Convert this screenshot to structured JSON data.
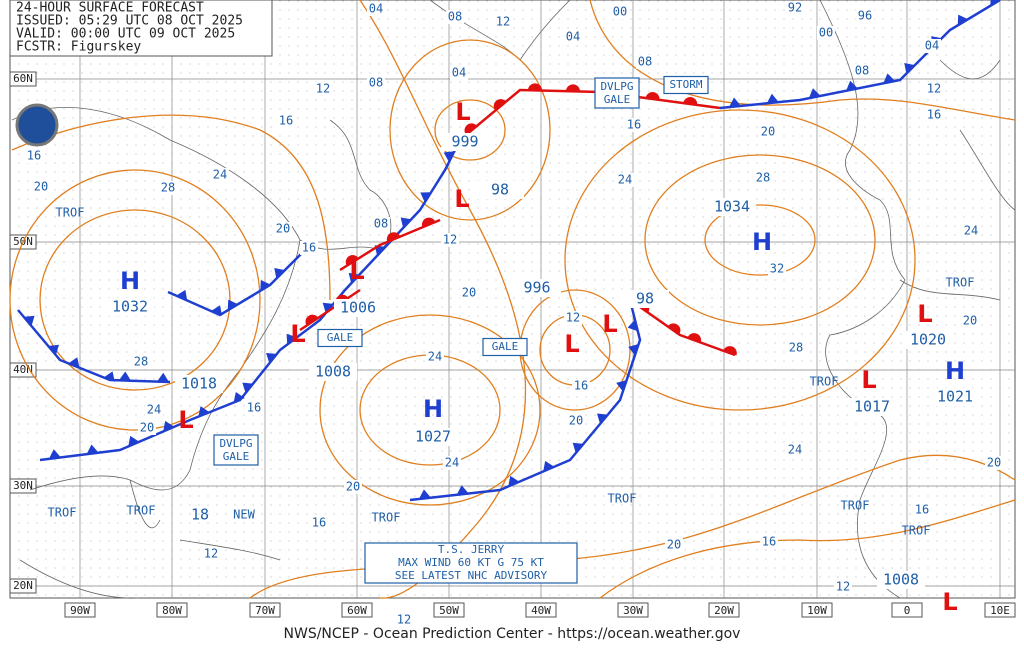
{
  "header": {
    "lines": [
      "24-HOUR SURFACE FORECAST",
      "ISSUED: 05:29 UTC 08 OCT 2025",
      "VALID: 00:00 UTC 09 OCT 2025",
      "FCSTR: Figurskey"
    ]
  },
  "footer": "NWS/NCEP - Ocean Prediction Center - https://ocean.weather.gov",
  "lat_labels": [
    "60N",
    "50N",
    "40N",
    "30N",
    "20N"
  ],
  "lon_labels": [
    "90W",
    "80W",
    "70W",
    "60W",
    "50W",
    "40W",
    "30W",
    "20W",
    "10W",
    "0",
    "10E"
  ],
  "highs": [
    {
      "symbol": "H",
      "pressure": "1032"
    },
    {
      "symbol": "H",
      "pressure": "1027"
    },
    {
      "symbol": "H",
      "pressure": "1034"
    },
    {
      "symbol": "H",
      "pressure": "1021"
    }
  ],
  "lows": [
    {
      "symbol": "L",
      "pressure": "999"
    },
    {
      "symbol": "L",
      "pressure": "1006"
    },
    {
      "symbol": "L",
      "pressure": "1008"
    },
    {
      "symbol": "L",
      "pressure": "1018"
    },
    {
      "symbol": "L",
      "pressure": "996"
    },
    {
      "symbol": "L",
      "pressure": "1017"
    },
    {
      "symbol": "L",
      "pressure": "1020"
    },
    {
      "symbol": "L",
      "pressure": "1008"
    },
    {
      "symbol": "L",
      "pressure": "98"
    },
    {
      "symbol": "L",
      "pressure": "98"
    }
  ],
  "boxed_labels": [
    "GALE",
    "DVLPG GALE",
    "GALE",
    "DVLPG GALE",
    "STORM"
  ],
  "new_system": {
    "pressure": "18",
    "label": "NEW"
  },
  "advisory": [
    "T.S. JERRY",
    "MAX WIND 60 KT G 75 KT",
    "SEE LATEST NHC ADVISORY"
  ],
  "trof_labels": [
    "TROF",
    "TROF",
    "TROF",
    "TROF",
    "TROF",
    "TROF",
    "TROF",
    "TROF",
    "TROF"
  ],
  "isobar_labels": [
    "04",
    "08",
    "12",
    "00",
    "04",
    "92",
    "96",
    "00",
    "08",
    "04",
    "12",
    "16",
    "08",
    "04",
    "12",
    "16",
    "16",
    "20",
    "28",
    "24",
    "20",
    "16",
    "08",
    "12",
    "08",
    "16",
    "20",
    "24",
    "28",
    "32",
    "24",
    "20",
    "20",
    "24",
    "28",
    "24",
    "20",
    "16",
    "12",
    "16",
    "20",
    "24",
    "20",
    "16",
    "12",
    "20",
    "16",
    "24",
    "28",
    "20",
    "16",
    "12",
    "12"
  ]
}
